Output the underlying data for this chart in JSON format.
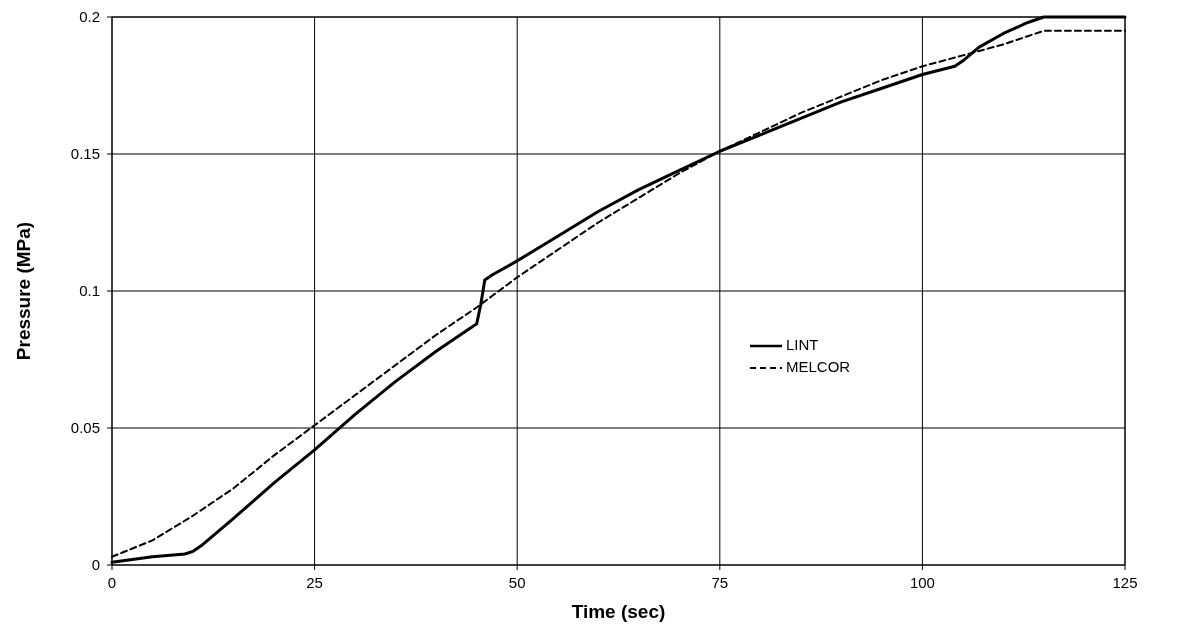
{
  "chart_data": {
    "type": "line",
    "xlabel": "Time (sec)",
    "ylabel": "Pressure (MPa)",
    "xlim": [
      0,
      125
    ],
    "xticks": [
      0,
      25,
      50,
      75,
      100,
      125
    ],
    "ylim": [
      0,
      0.2
    ],
    "yticks": [
      0,
      0.05,
      0.1,
      0.15,
      0.2
    ],
    "grid": true,
    "legend": "center right",
    "marker": "none",
    "series": [
      {
        "name": "LINT",
        "color": "#000000",
        "line_style": "solid",
        "x": [
          0,
          5,
          9,
          10,
          11,
          15,
          20,
          25,
          30,
          35,
          40,
          44,
          45,
          45.5,
          46,
          47,
          50,
          55,
          60,
          65,
          70,
          75,
          80,
          85,
          90,
          95,
          100,
          104,
          105,
          107,
          110,
          113,
          115,
          125
        ],
        "values": [
          0.001,
          0.003,
          0.004,
          0.005,
          0.007,
          0.017,
          0.03,
          0.042,
          0.055,
          0.067,
          0.078,
          0.086,
          0.088,
          0.095,
          0.104,
          0.106,
          0.111,
          0.12,
          0.129,
          0.137,
          0.144,
          0.151,
          0.157,
          0.163,
          0.169,
          0.174,
          0.179,
          0.182,
          0.184,
          0.189,
          0.194,
          0.198,
          0.2,
          0.2
        ]
      },
      {
        "name": "MELCOR",
        "color": "#000000",
        "line_style": "dashed",
        "x": [
          0,
          5,
          10,
          15,
          20,
          25,
          30,
          35,
          40,
          45,
          50,
          55,
          60,
          65,
          70,
          75,
          80,
          85,
          90,
          95,
          100,
          105,
          110,
          113,
          115,
          117,
          125
        ],
        "values": [
          0.003,
          0.009,
          0.018,
          0.028,
          0.04,
          0.051,
          0.062,
          0.073,
          0.084,
          0.094,
          0.105,
          0.115,
          0.125,
          0.134,
          0.143,
          0.151,
          0.158,
          0.165,
          0.171,
          0.177,
          0.182,
          0.186,
          0.19,
          0.193,
          0.195,
          0.195,
          0.195
        ]
      }
    ]
  }
}
